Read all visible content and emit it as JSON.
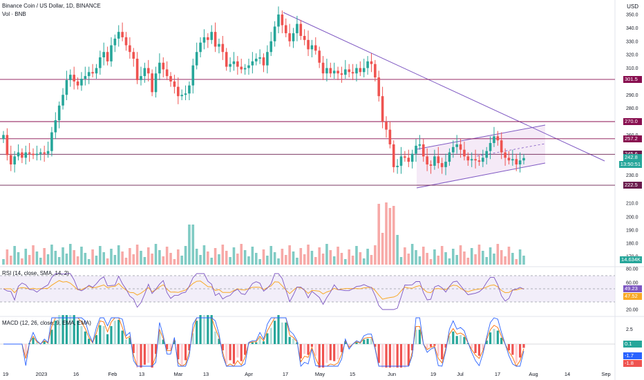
{
  "header": {
    "title": "Binance Coin / US Dollar, 1D, BINANCE",
    "volume_label": "Vol · BNB",
    "currency": "USD"
  },
  "indicators": {
    "rsi_label": "RSI (14, close, SMA, 14, 2)",
    "macd_label": "MACD (12, 26, close, 9, EMA, EMA)"
  },
  "colors": {
    "up": "#26a69a",
    "down": "#ef5350",
    "level": "#880e4f",
    "trend": "#7e57c2",
    "channel_fill": "#f3e5f5",
    "rsi_line": "#7e57c2",
    "rsi_sma": "#f9a825",
    "macd_line": "#2962ff",
    "signal_line": "#ff6d00"
  },
  "chart_data": [
    {
      "type": "candlestick",
      "title": "Binance Coin / US Dollar, 1D, BINANCE",
      "y_ticks": [
        350,
        340,
        330,
        320,
        310,
        290,
        280,
        260,
        230,
        210,
        200,
        190,
        180,
        170
      ],
      "ylim": [
        170,
        355
      ],
      "x_ticks": [
        "19",
        "2023",
        "16",
        "Feb",
        "13",
        "Mar",
        "13",
        "Apr",
        "17",
        "May",
        "15",
        "Jun",
        "19",
        "Jul",
        "17",
        "Aug",
        "14",
        "Sep"
      ],
      "levels": [
        {
          "label": "301.5",
          "value": 301.5
        },
        {
          "label": "270.0",
          "value": 270.0
        },
        {
          "label": "257.2",
          "value": 257.2
        },
        {
          "label": "245.6",
          "value": 245.6
        },
        {
          "label": "222.5",
          "value": 222.5
        }
      ],
      "last_price": {
        "value": "242.8",
        "countdown": "13:50:51"
      },
      "volume_last": "14.634K",
      "closes": [
        260,
        245,
        238,
        244,
        247,
        243,
        247,
        246,
        245,
        246,
        247,
        246,
        248,
        262,
        271,
        282,
        290,
        301,
        305,
        300,
        297,
        302,
        304,
        307,
        306,
        310,
        318,
        322,
        315,
        327,
        332,
        337,
        333,
        327,
        322,
        317,
        301,
        304,
        310,
        306,
        292,
        306,
        314,
        309,
        304,
        300,
        296,
        289,
        290,
        291,
        297,
        312,
        322,
        329,
        333,
        331,
        337,
        326,
        328,
        322,
        311,
        313,
        315,
        311,
        309,
        310,
        312,
        315,
        317,
        318,
        312,
        322,
        330,
        341,
        350,
        342,
        336,
        330,
        336,
        343,
        334,
        331,
        324,
        327,
        323,
        314,
        306,
        310,
        306,
        308,
        306,
        305,
        309,
        307,
        306,
        310,
        307,
        310,
        315,
        313,
        303,
        289,
        270,
        264,
        253,
        236,
        237,
        244,
        243,
        240,
        246,
        252,
        253,
        244,
        238,
        237,
        244,
        239,
        236,
        240,
        247,
        251,
        253,
        249,
        244,
        241,
        242,
        241,
        240,
        243,
        248,
        254,
        259,
        256,
        247,
        243,
        241,
        242,
        238,
        241,
        242.8
      ],
      "rsi": {
        "ticks": [
          80,
          60,
          20
        ],
        "value": "49.23",
        "sma": "47.52"
      },
      "macd": {
        "ticks": [
          2.5,
          0
        ],
        "hist": "0.1",
        "macd": "-1.7",
        "signal": "-1.8"
      }
    }
  ]
}
